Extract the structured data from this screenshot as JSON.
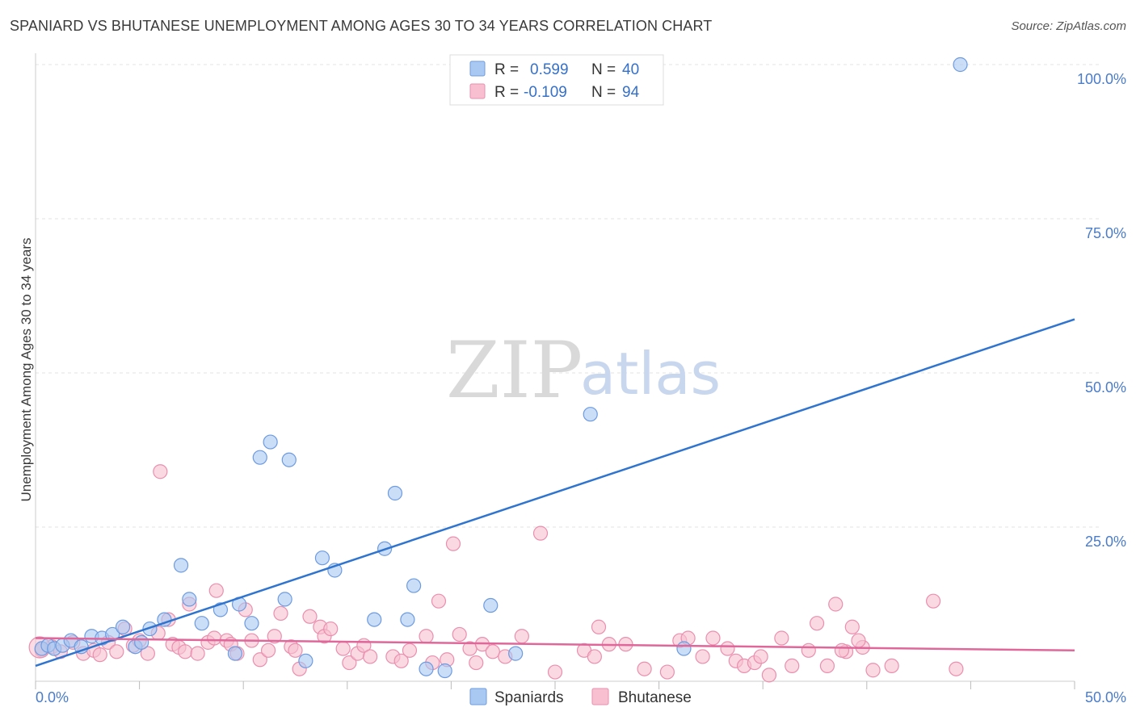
{
  "header": {
    "title": "SPANIARD VS BHUTANESE UNEMPLOYMENT AMONG AGES 30 TO 34 YEARS CORRELATION CHART",
    "source": "Source: ZipAtlas.com"
  },
  "watermark": {
    "zip": "ZIP",
    "atlas": "atlas"
  },
  "colors": {
    "spaniards_fill": "#a9c8f2",
    "spaniards_stroke": "#6d9be0",
    "spaniards_line": "#2f74cf",
    "bhutanese_fill": "#f7bfd0",
    "bhutanese_stroke": "#ea8fae",
    "bhutanese_line": "#e0679a",
    "grid": "#e3e3e3",
    "tick_text": "#4a7cc9"
  },
  "legend": {
    "rows": [
      {
        "r_label": "R =",
        "r_value": "0.599",
        "n_label": "N =",
        "n_value": "40"
      },
      {
        "r_label": "R =",
        "r_value": "-0.109",
        "n_label": "N =",
        "n_value": "94"
      }
    ]
  },
  "chart_data": {
    "type": "scatter",
    "title": "SPANIARD VS BHUTANESE UNEMPLOYMENT AMONG AGES 30 TO 34 YEARS CORRELATION CHART",
    "xlabel": "",
    "ylabel": "Unemployment Among Ages 30 to 34 years",
    "xlim": [
      0,
      50
    ],
    "ylim": [
      0,
      100
    ],
    "x_tick_labels": [
      {
        "value": 0,
        "label": "0.0%"
      },
      {
        "value": 50,
        "label": "50.0%"
      }
    ],
    "y_tick_labels": [
      {
        "value": 25,
        "label": "25.0%"
      },
      {
        "value": 50,
        "label": "50.0%"
      },
      {
        "value": 75,
        "label": "75.0%"
      },
      {
        "value": 100,
        "label": "100.0%"
      }
    ],
    "grid": true,
    "legend_position": "top-center",
    "series": [
      {
        "name": "Spaniards",
        "r": 0.599,
        "n": 40,
        "trend": {
          "x": [
            0,
            50
          ],
          "y": [
            2.5,
            58.7
          ]
        },
        "points": [
          [
            0.3,
            5.3
          ],
          [
            0.6,
            5.8
          ],
          [
            0.9,
            5.3
          ],
          [
            1.3,
            5.8
          ],
          [
            1.7,
            6.6
          ],
          [
            2.2,
            5.6
          ],
          [
            2.7,
            7.3
          ],
          [
            3.2,
            7.0
          ],
          [
            3.7,
            7.6
          ],
          [
            4.2,
            8.8
          ],
          [
            4.8,
            5.6
          ],
          [
            5.1,
            6.3
          ],
          [
            5.5,
            8.5
          ],
          [
            6.2,
            10.0
          ],
          [
            7.0,
            18.8
          ],
          [
            7.4,
            13.3
          ],
          [
            8.0,
            9.4
          ],
          [
            8.9,
            11.6
          ],
          [
            9.6,
            4.5
          ],
          [
            9.8,
            12.5
          ],
          [
            10.4,
            9.4
          ],
          [
            10.8,
            36.3
          ],
          [
            11.3,
            38.8
          ],
          [
            12.0,
            13.3
          ],
          [
            12.2,
            35.9
          ],
          [
            13.0,
            3.3
          ],
          [
            13.8,
            20.0
          ],
          [
            14.4,
            18.0
          ],
          [
            16.3,
            10.0
          ],
          [
            16.8,
            21.5
          ],
          [
            17.3,
            30.5
          ],
          [
            17.9,
            10.0
          ],
          [
            18.2,
            15.5
          ],
          [
            18.8,
            2.0
          ],
          [
            19.7,
            1.7
          ],
          [
            21.9,
            12.3
          ],
          [
            23.1,
            4.5
          ],
          [
            26.7,
            43.3
          ],
          [
            31.2,
            5.3
          ],
          [
            44.5,
            100.0
          ]
        ]
      },
      {
        "name": "Bhutanese",
        "r": -0.109,
        "n": 94,
        "trend": {
          "x": [
            0,
            50
          ],
          "y": [
            7.0,
            5.0
          ]
        },
        "points": [
          [
            0.3,
            5.0
          ],
          [
            0.8,
            5.6
          ],
          [
            1.2,
            4.8
          ],
          [
            1.8,
            6.3
          ],
          [
            2.3,
            4.5
          ],
          [
            2.8,
            5.0
          ],
          [
            3.1,
            4.3
          ],
          [
            3.5,
            6.3
          ],
          [
            3.9,
            4.8
          ],
          [
            4.3,
            8.5
          ],
          [
            4.7,
            5.8
          ],
          [
            5.0,
            6.6
          ],
          [
            5.4,
            4.5
          ],
          [
            5.9,
            7.8
          ],
          [
            6.0,
            34.0
          ],
          [
            6.4,
            10.0
          ],
          [
            6.6,
            6.0
          ],
          [
            6.9,
            5.5
          ],
          [
            7.2,
            4.8
          ],
          [
            7.4,
            12.5
          ],
          [
            7.8,
            4.5
          ],
          [
            8.3,
            6.3
          ],
          [
            8.6,
            7.0
          ],
          [
            8.7,
            14.7
          ],
          [
            9.2,
            6.6
          ],
          [
            9.4,
            6.0
          ],
          [
            9.7,
            4.5
          ],
          [
            10.1,
            11.6
          ],
          [
            10.4,
            6.6
          ],
          [
            10.8,
            3.5
          ],
          [
            11.2,
            5.0
          ],
          [
            11.5,
            7.3
          ],
          [
            11.8,
            11.0
          ],
          [
            12.3,
            5.6
          ],
          [
            12.5,
            5.0
          ],
          [
            12.7,
            2.0
          ],
          [
            13.2,
            10.5
          ],
          [
            13.7,
            8.8
          ],
          [
            13.9,
            7.3
          ],
          [
            14.2,
            8.5
          ],
          [
            14.8,
            5.3
          ],
          [
            15.1,
            3.0
          ],
          [
            15.5,
            4.5
          ],
          [
            15.8,
            5.8
          ],
          [
            16.1,
            4.0
          ],
          [
            17.2,
            4.0
          ],
          [
            17.6,
            3.3
          ],
          [
            18.0,
            5.0
          ],
          [
            18.8,
            7.3
          ],
          [
            19.1,
            3.0
          ],
          [
            19.4,
            13.0
          ],
          [
            19.8,
            3.5
          ],
          [
            20.1,
            22.3
          ],
          [
            20.4,
            7.6
          ],
          [
            20.9,
            5.3
          ],
          [
            21.2,
            3.0
          ],
          [
            21.5,
            6.0
          ],
          [
            22.0,
            4.8
          ],
          [
            22.6,
            4.0
          ],
          [
            23.4,
            7.3
          ],
          [
            24.3,
            24.0
          ],
          [
            25.0,
            1.5
          ],
          [
            26.4,
            5.0
          ],
          [
            26.9,
            4.0
          ],
          [
            27.1,
            8.8
          ],
          [
            27.6,
            6.0
          ],
          [
            29.3,
            2.0
          ],
          [
            30.4,
            1.5
          ],
          [
            31.0,
            6.6
          ],
          [
            31.4,
            7.0
          ],
          [
            32.1,
            4.0
          ],
          [
            32.6,
            7.0
          ],
          [
            33.3,
            5.3
          ],
          [
            33.7,
            3.3
          ],
          [
            34.1,
            2.5
          ],
          [
            34.6,
            3.0
          ],
          [
            35.3,
            1.0
          ],
          [
            35.9,
            7.0
          ],
          [
            36.4,
            2.5
          ],
          [
            37.2,
            5.0
          ],
          [
            37.6,
            9.4
          ],
          [
            38.1,
            2.5
          ],
          [
            38.5,
            12.5
          ],
          [
            39.0,
            4.8
          ],
          [
            39.3,
            8.8
          ],
          [
            39.8,
            5.5
          ],
          [
            40.3,
            1.8
          ],
          [
            41.2,
            2.5
          ],
          [
            43.2,
            13.0
          ],
          [
            44.3,
            2.0
          ],
          [
            39.6,
            6.6
          ],
          [
            38.8,
            5.0
          ],
          [
            28.4,
            6.0
          ],
          [
            34.9,
            4.0
          ]
        ]
      }
    ]
  },
  "bottom_legend": {
    "items": [
      {
        "label": "Spaniards"
      },
      {
        "label": "Bhutanese"
      }
    ]
  }
}
